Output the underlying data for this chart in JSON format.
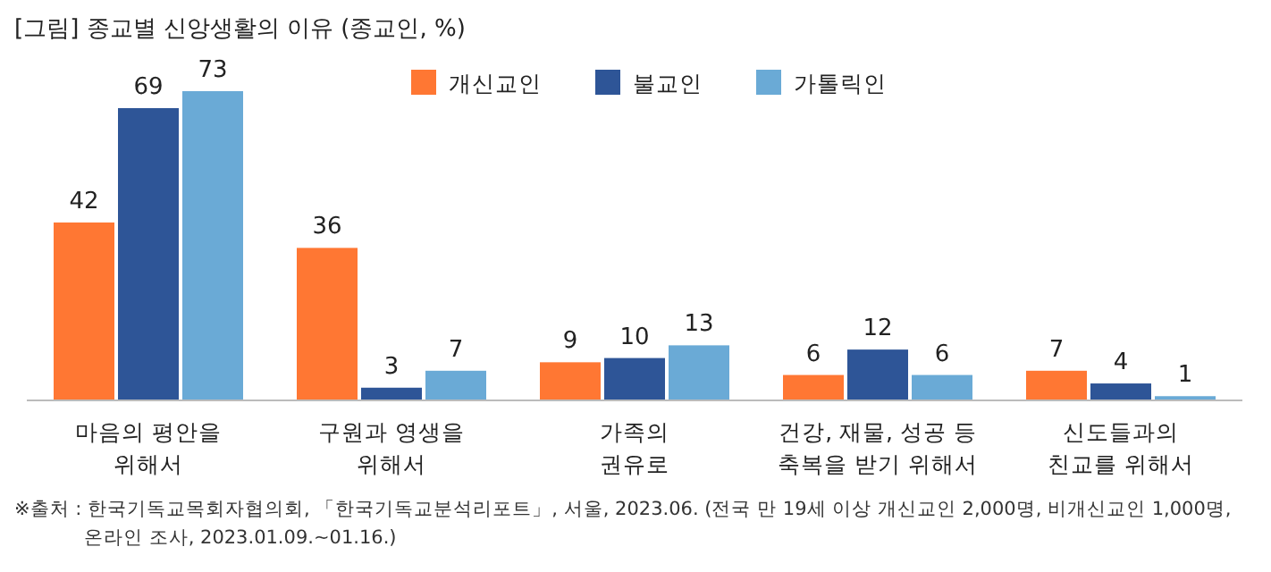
{
  "chart_data": {
    "type": "bar",
    "title": "[그림] 종교별 신앙생활의 이유 (종교인, %)",
    "categories": [
      "마음의 평안을\n위해서",
      "구원과 영생을\n위해서",
      "가족의\n권유로",
      "건강, 재물, 성공 등\n축복을 받기 위해서",
      "신도들과의\n친교를 위해서"
    ],
    "series": [
      {
        "name": "개신교인",
        "color": "#ff7733",
        "values": [
          42,
          36,
          9,
          6,
          7
        ]
      },
      {
        "name": "불교인",
        "color": "#2e5597",
        "values": [
          69,
          3,
          10,
          12,
          4
        ]
      },
      {
        "name": "가톨릭인",
        "color": "#6aaad6",
        "values": [
          73,
          7,
          13,
          6,
          1
        ]
      }
    ],
    "data_labels": true,
    "legend": "top",
    "annotations": [
      "※출처 : 한국기독교목회자협의회, 「한국기독교분석리포트」, 서울, 2023.06. (전국 만 19세 이상 개신교인 2,000명, 비개신교인 1,000명,\n온라인 조사, 2023.01.09.~01.16.)"
    ]
  }
}
